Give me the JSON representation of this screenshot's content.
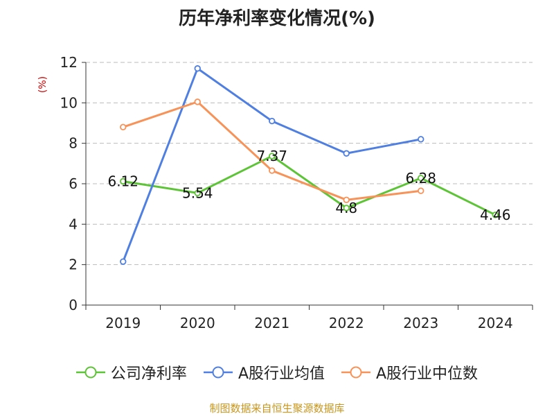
{
  "chart_data": {
    "type": "line",
    "title": "历年净利率变化情况(%)",
    "ylabel": "(%)",
    "xlabel": "",
    "categories": [
      "2019",
      "2020",
      "2021",
      "2022",
      "2023",
      "2024"
    ],
    "ylim": [
      0,
      12
    ],
    "yticks": [
      0,
      2,
      4,
      6,
      8,
      10,
      12
    ],
    "grid": true,
    "legend_position": "bottom",
    "series": [
      {
        "name": "公司净利率",
        "color": "#5ec437",
        "values": [
          6.12,
          5.54,
          7.37,
          4.8,
          6.28,
          4.46
        ],
        "labels": [
          "6.12",
          "5.54",
          "7.37",
          "4.8",
          "6.28",
          "4.46"
        ]
      },
      {
        "name": "A股行业均值",
        "color": "#4f7fe0",
        "values": [
          2.15,
          11.7,
          9.1,
          7.5,
          8.2,
          null
        ]
      },
      {
        "name": "A股行业中位数",
        "color": "#f79358",
        "values": [
          8.8,
          10.05,
          6.65,
          5.2,
          5.65,
          null
        ]
      }
    ]
  },
  "source": "制图数据来自恒生聚源数据库"
}
